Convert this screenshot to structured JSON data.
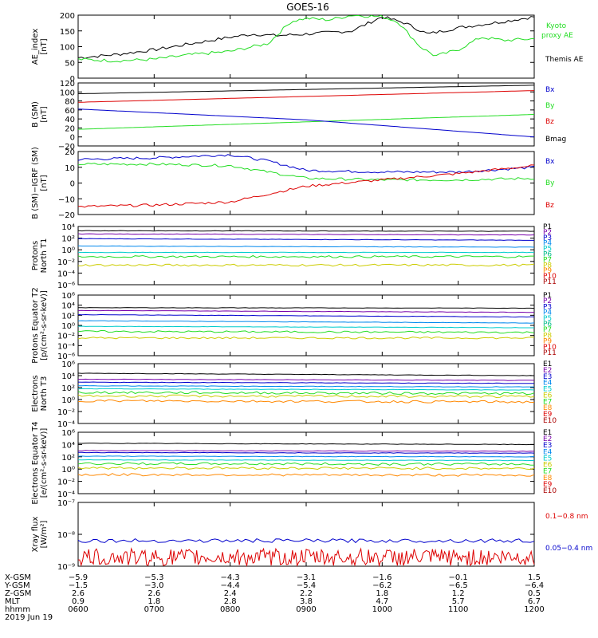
{
  "title": "GOES-16",
  "x_ticks": [
    "0600",
    "0700",
    "0800",
    "0900",
    "1000",
    "1100",
    "1200"
  ],
  "colors": {
    "black": "#000000",
    "green": "#22dd22",
    "blue": "#0000cc",
    "red": "#dd0000"
  },
  "chart_data": [
    {
      "type": "line",
      "ylabel": "AE_index [nT]",
      "ylim": [
        0,
        200
      ],
      "yticks": [
        "200",
        "150",
        "100",
        "50",
        "0"
      ],
      "legend": [
        {
          "name": "Kyoto proxy AE",
          "color": "#22dd22"
        },
        {
          "name": "Themis AE",
          "color": "#000000"
        }
      ],
      "series": [
        {
          "name": "Themis AE",
          "color": "#000000",
          "x": [
            6,
            6.5,
            7,
            7.5,
            8,
            8.3,
            8.6,
            9,
            9.3,
            9.6,
            10,
            10.3,
            10.6,
            11,
            11.3,
            11.6,
            12
          ],
          "values": [
            65,
            75,
            90,
            110,
            130,
            140,
            135,
            140,
            145,
            150,
            195,
            175,
            140,
            160,
            170,
            180,
            195
          ]
        },
        {
          "name": "Kyoto proxy AE",
          "color": "#22dd22",
          "x": [
            6,
            6.5,
            7,
            7.5,
            8,
            8.3,
            8.5,
            8.8,
            9,
            9.3,
            9.6,
            10,
            10.2,
            10.5,
            10.7,
            11,
            11.3,
            11.6,
            12
          ],
          "values": [
            60,
            55,
            60,
            75,
            85,
            100,
            110,
            180,
            190,
            185,
            200,
            195,
            180,
            100,
            70,
            90,
            130,
            120,
            125
          ]
        }
      ]
    },
    {
      "type": "line",
      "ylabel": "B (SM) [nT]",
      "ylim": [
        -20,
        120
      ],
      "yticks": [
        "120",
        "100",
        "80",
        "60",
        "40",
        "20",
        "0",
        "−20"
      ],
      "legend": [
        {
          "name": "Bx",
          "color": "#0000cc"
        },
        {
          "name": "By",
          "color": "#22dd22"
        },
        {
          "name": "Bz",
          "color": "#dd0000"
        },
        {
          "name": "Bmag",
          "color": "#000000"
        }
      ],
      "series": [
        {
          "name": "Bmag",
          "color": "#000000",
          "x": [
            6,
            12
          ],
          "values": [
            96,
            115
          ]
        },
        {
          "name": "Bz",
          "color": "#dd0000",
          "x": [
            6,
            12
          ],
          "values": [
            77,
            103
          ]
        },
        {
          "name": "By",
          "color": "#22dd22",
          "x": [
            6,
            12
          ],
          "values": [
            17,
            50
          ]
        },
        {
          "name": "Bx",
          "color": "#0000cc",
          "x": [
            6,
            9,
            12
          ],
          "values": [
            62,
            38,
            0
          ]
        }
      ]
    },
    {
      "type": "line",
      "ylabel": "B (SM)−IGRF (SM) [nT]",
      "ylim": [
        -20,
        20
      ],
      "yticks": [
        "20",
        "10",
        "0",
        "−10",
        "−20"
      ],
      "legend": [
        {
          "name": "Bx",
          "color": "#0000cc"
        },
        {
          "name": "By",
          "color": "#22dd22"
        },
        {
          "name": "Bz",
          "color": "#dd0000"
        }
      ],
      "series": [
        {
          "name": "Bx",
          "color": "#0000cc",
          "x": [
            6,
            7,
            8,
            8.5,
            9,
            10,
            11,
            12
          ],
          "values": [
            15,
            16,
            18,
            14,
            8,
            7,
            7,
            10
          ]
        },
        {
          "name": "By",
          "color": "#22dd22",
          "x": [
            6,
            7,
            8,
            8.5,
            9,
            10,
            11,
            12
          ],
          "values": [
            12,
            12,
            11,
            7,
            3,
            2,
            2,
            3
          ]
        },
        {
          "name": "Bz",
          "color": "#dd0000",
          "x": [
            6,
            7,
            8,
            8.5,
            9,
            10,
            11,
            12
          ],
          "values": [
            -15,
            -14,
            -12,
            -7,
            -2,
            2,
            6,
            11
          ]
        }
      ]
    },
    {
      "type": "line",
      "ylabel": "Protons North T1",
      "scale": "log",
      "ylim": [
        -7,
        4
      ],
      "yticks": [
        "10⁴",
        "10²",
        "10⁰",
        "10⁻²",
        "10⁻⁴",
        "10⁻⁶"
      ],
      "legend": [
        {
          "name": "P1",
          "color": "#000000"
        },
        {
          "name": "P2",
          "color": "#7700aa"
        },
        {
          "name": "P3",
          "color": "#0000cc"
        },
        {
          "name": "P4",
          "color": "#0088ee"
        },
        {
          "name": "P5",
          "color": "#00cccc"
        },
        {
          "name": "P6",
          "color": "#00bb88"
        },
        {
          "name": "P7",
          "color": "#22dd22"
        },
        {
          "name": "P8",
          "color": "#cccc00"
        },
        {
          "name": "P9",
          "color": "#ff8800"
        },
        {
          "name": "P10",
          "color": "#dd0000"
        },
        {
          "name": "P11",
          "color": "#aa0000"
        }
      ],
      "series": [
        {
          "name": "P1",
          "color": "#000000",
          "values": [
            3.2,
            3.1
          ]
        },
        {
          "name": "P2",
          "color": "#7700aa",
          "values": [
            2.6,
            2.4
          ]
        },
        {
          "name": "P3",
          "color": "#0000cc",
          "values": [
            1.7,
            1.4
          ]
        },
        {
          "name": "P4",
          "color": "#0088ee",
          "values": [
            0.3,
            0.1
          ]
        },
        {
          "name": "P5",
          "color": "#00cccc",
          "values": [
            -0.9,
            -0.9
          ]
        },
        {
          "name": "P6",
          "color": "#22dd22",
          "values": [
            -1.7,
            -1.7
          ]
        },
        {
          "name": "P7",
          "color": "#cccc00",
          "values": [
            -3.3,
            -3.3
          ]
        }
      ]
    },
    {
      "type": "line",
      "ylabel": "Protons Equator T2 [p/(cm²-s-sr-keV)]",
      "scale": "log",
      "ylim": [
        -7,
        6
      ],
      "yticks": [
        "10⁶",
        "10⁴",
        "10²",
        "10⁰",
        "10⁻²",
        "10⁻⁴",
        "10⁻⁶"
      ],
      "legend": [
        {
          "name": "P1",
          "color": "#000000"
        },
        {
          "name": "P2",
          "color": "#7700aa"
        },
        {
          "name": "P3",
          "color": "#0000cc"
        },
        {
          "name": "P4",
          "color": "#0088ee"
        },
        {
          "name": "P5",
          "color": "#00cccc"
        },
        {
          "name": "P6",
          "color": "#00bb88"
        },
        {
          "name": "P7",
          "color": "#22dd22"
        },
        {
          "name": "P8",
          "color": "#cccc00"
        },
        {
          "name": "P9",
          "color": "#ff8800"
        },
        {
          "name": "P10",
          "color": "#dd0000"
        },
        {
          "name": "P11",
          "color": "#aa0000"
        }
      ],
      "series": [
        {
          "name": "P1",
          "color": "#000000",
          "values": [
            3.3,
            3.2
          ]
        },
        {
          "name": "P2",
          "color": "#7700aa",
          "values": [
            2.7,
            2.3
          ]
        },
        {
          "name": "P3",
          "color": "#0000cc",
          "values": [
            1.8,
            1.3
          ]
        },
        {
          "name": "P4",
          "color": "#0088ee",
          "values": [
            0.5,
            0.0
          ]
        },
        {
          "name": "P5",
          "color": "#00cccc",
          "values": [
            -0.7,
            -1.0
          ]
        },
        {
          "name": "P6",
          "color": "#22dd22",
          "values": [
            -1.8,
            -2.0
          ]
        },
        {
          "name": "P7",
          "color": "#cccc00",
          "values": [
            -3.2,
            -3.2
          ]
        }
      ]
    },
    {
      "type": "line",
      "ylabel": "Electrons North T3",
      "scale": "log",
      "ylim": [
        -4,
        6
      ],
      "yticks": [
        "10⁶",
        "10⁴",
        "10²",
        "10⁰",
        "10⁻²",
        "10⁻⁴"
      ],
      "legend": [
        {
          "name": "E1",
          "color": "#000000"
        },
        {
          "name": "E2",
          "color": "#7700aa"
        },
        {
          "name": "E3",
          "color": "#0000cc"
        },
        {
          "name": "E4",
          "color": "#0088ee"
        },
        {
          "name": "E5",
          "color": "#00cccc"
        },
        {
          "name": "E6",
          "color": "#cccc00"
        },
        {
          "name": "E7",
          "color": "#22dd22"
        },
        {
          "name": "E8",
          "color": "#ff8800"
        },
        {
          "name": "E9",
          "color": "#dd0000"
        },
        {
          "name": "E10",
          "color": "#aa0000"
        }
      ],
      "series": [
        {
          "name": "E1",
          "color": "#000000",
          "values": [
            4.4,
            4.0
          ]
        },
        {
          "name": "E2",
          "color": "#7700aa",
          "values": [
            3.4,
            3.2
          ]
        },
        {
          "name": "E3",
          "color": "#0000cc",
          "values": [
            2.9,
            2.7
          ]
        },
        {
          "name": "E4",
          "color": "#0088ee",
          "values": [
            2.3,
            2.1
          ]
        },
        {
          "name": "E5",
          "color": "#00cccc",
          "values": [
            1.8,
            1.6
          ]
        },
        {
          "name": "E6",
          "color": "#22dd22",
          "values": [
            1.2,
            1.0
          ]
        },
        {
          "name": "E7",
          "color": "#cccc00",
          "values": [
            0.6,
            0.5
          ]
        },
        {
          "name": "E8",
          "color": "#ff8800",
          "values": [
            -0.2,
            -0.4
          ]
        }
      ]
    },
    {
      "type": "line",
      "ylabel": "Electrons Equator T4 [e/(cm²-s-sr-keV)]",
      "scale": "log",
      "ylim": [
        -4,
        6
      ],
      "yticks": [
        "10⁶",
        "10⁴",
        "10²",
        "10⁰",
        "10⁻²",
        "10⁻⁴"
      ],
      "legend": [
        {
          "name": "E1",
          "color": "#000000"
        },
        {
          "name": "E2",
          "color": "#7700aa"
        },
        {
          "name": "E3",
          "color": "#0000cc"
        },
        {
          "name": "E4",
          "color": "#0088ee"
        },
        {
          "name": "E5",
          "color": "#00cccc"
        },
        {
          "name": "E6",
          "color": "#cccc00"
        },
        {
          "name": "E7",
          "color": "#22dd22"
        },
        {
          "name": "E8",
          "color": "#ff8800"
        },
        {
          "name": "E9",
          "color": "#dd0000"
        },
        {
          "name": "E10",
          "color": "#aa0000"
        }
      ],
      "series": [
        {
          "name": "E1",
          "color": "#000000",
          "values": [
            4.2,
            4.0
          ]
        },
        {
          "name": "E2",
          "color": "#7700aa",
          "values": [
            3.0,
            2.9
          ]
        },
        {
          "name": "E3",
          "color": "#0000cc",
          "values": [
            2.7,
            2.6
          ]
        },
        {
          "name": "E4",
          "color": "#0088ee",
          "values": [
            2.1,
            2.0
          ]
        },
        {
          "name": "E5",
          "color": "#00cccc",
          "values": [
            1.5,
            1.4
          ]
        },
        {
          "name": "E6",
          "color": "#22dd22",
          "values": [
            0.9,
            0.8
          ]
        },
        {
          "name": "E7",
          "color": "#cccc00",
          "values": [
            0.2,
            0.1
          ]
        },
        {
          "name": "E8",
          "color": "#ff8800",
          "values": [
            -0.9,
            -1.0
          ]
        }
      ]
    },
    {
      "type": "line",
      "ylabel": "Xray flux [W/m²]",
      "scale": "log",
      "ylim": [
        -9,
        -7
      ],
      "yticks": [
        "10⁻⁷",
        "10⁻⁸",
        "10⁻⁹"
      ],
      "legend": [
        {
          "name": "0.1−0.8 nm",
          "color": "#dd0000"
        },
        {
          "name": "0.05−0.4 nm",
          "color": "#0000cc"
        }
      ],
      "series": [
        {
          "name": "0.1−0.8 nm",
          "color": "#dd0000",
          "values": [
            -8.65,
            -8.9
          ]
        },
        {
          "name": "0.05−0.4 nm",
          "color": "#0000cc",
          "values": [
            -8.2,
            -8.2
          ]
        }
      ]
    }
  ],
  "footer": {
    "rows": [
      {
        "label": "X-GSM",
        "values": [
          "−5.9",
          "−5.3",
          "−4.3",
          "−3.1",
          "−1.6",
          "−0.1",
          "1.5"
        ]
      },
      {
        "label": "Y-GSM",
        "values": [
          "−1.5",
          "−3.0",
          "−4.4",
          "−5.4",
          "−6.2",
          "−6.5",
          "−6.4"
        ]
      },
      {
        "label": "Z-GSM",
        "values": [
          "2.6",
          "2.6",
          "2.4",
          "2.2",
          "1.8",
          "1.2",
          "0.5"
        ]
      },
      {
        "label": "MLT",
        "values": [
          "0.9",
          "1.8",
          "2.8",
          "3.8",
          "4.7",
          "5.7",
          "6.7"
        ]
      },
      {
        "label": "hhmm",
        "values": [
          "0600",
          "0700",
          "0800",
          "0900",
          "1000",
          "1100",
          "1200"
        ]
      }
    ],
    "date": "2019 Jun 19"
  }
}
